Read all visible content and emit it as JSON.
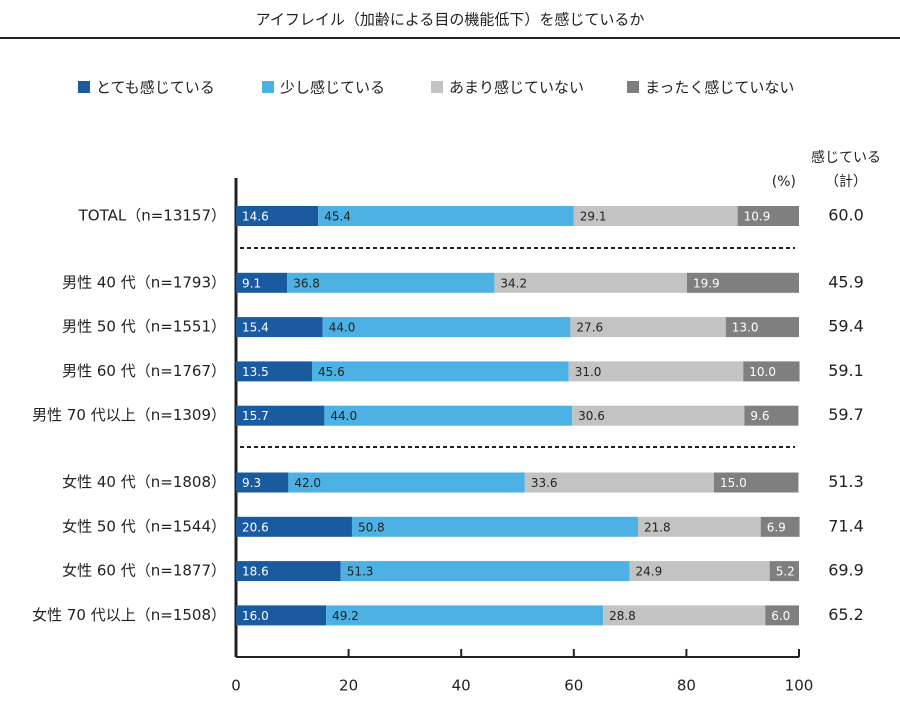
{
  "chart_data": {
    "type": "stacked_barh",
    "title": "アイフレイル（加齢による目の機能低下）を感じているか",
    "unit_label": "(%)",
    "categories": [
      "TOTAL（n=13157）",
      "男性 40 代（n=1793）",
      "男性 50 代（n=1551）",
      "男性 60 代（n=1767）",
      "男性 70 代以上（n=1309）",
      "女性 40 代（n=1808）",
      "女性 50 代（n=1544）",
      "女性 60 代（n=1877）",
      "女性 70 代以上（n=1508）"
    ],
    "series": [
      {
        "name": "とても感じている",
        "color": "#1a5a9e",
        "label_color": "#ffffff",
        "values": [
          14.6,
          9.1,
          15.4,
          13.5,
          15.7,
          9.3,
          20.6,
          18.6,
          16.0
        ],
        "value_labels": [
          "14.6",
          "9.1",
          "15.4",
          "13.5",
          "15.7",
          "9.3",
          "20.6",
          "18.6",
          "16.0"
        ]
      },
      {
        "name": "少し感じている",
        "color": "#4db1e3",
        "label_color": "#222222",
        "values": [
          45.4,
          36.8,
          44.0,
          45.6,
          44.0,
          42.0,
          50.8,
          51.3,
          49.2
        ],
        "value_labels": [
          "45.4",
          "36.8",
          "44.0",
          "45.6",
          "44.0",
          "42.0",
          "50.8",
          "51.3",
          "49.2"
        ]
      },
      {
        "name": "あまり感じていない",
        "color": "#c3c3c3",
        "label_color": "#222222",
        "values": [
          29.1,
          34.2,
          27.6,
          31.0,
          30.6,
          33.6,
          21.8,
          24.9,
          28.8
        ],
        "value_labels": [
          "29.1",
          "34.2",
          "27.6",
          "31.0",
          "30.6",
          "33.6",
          "21.8",
          "24.9",
          "28.8"
        ]
      },
      {
        "name": "まったく感じていない",
        "color": "#7f7f7f",
        "label_color": "#ffffff",
        "values": [
          10.9,
          19.9,
          13.0,
          10.0,
          9.6,
          15.0,
          6.9,
          5.2,
          6.0
        ],
        "value_labels": [
          "10.9",
          "19.9",
          "13.0",
          "10.0",
          "9.6",
          "15.0",
          "6.9",
          "5.2",
          "6.0"
        ]
      }
    ],
    "totals": {
      "header": [
        "感じている",
        "（計）"
      ],
      "values": [
        60.0,
        45.9,
        59.4,
        59.1,
        59.7,
        51.3,
        71.4,
        69.9,
        65.2
      ],
      "value_labels": [
        "60.0",
        "45.9",
        "59.4",
        "59.1",
        "59.7",
        "51.3",
        "71.4",
        "69.9",
        "65.2"
      ]
    },
    "xlim": [
      0,
      100
    ],
    "xticks": [
      0,
      20,
      40,
      60,
      80,
      100
    ],
    "legend": "top"
  }
}
